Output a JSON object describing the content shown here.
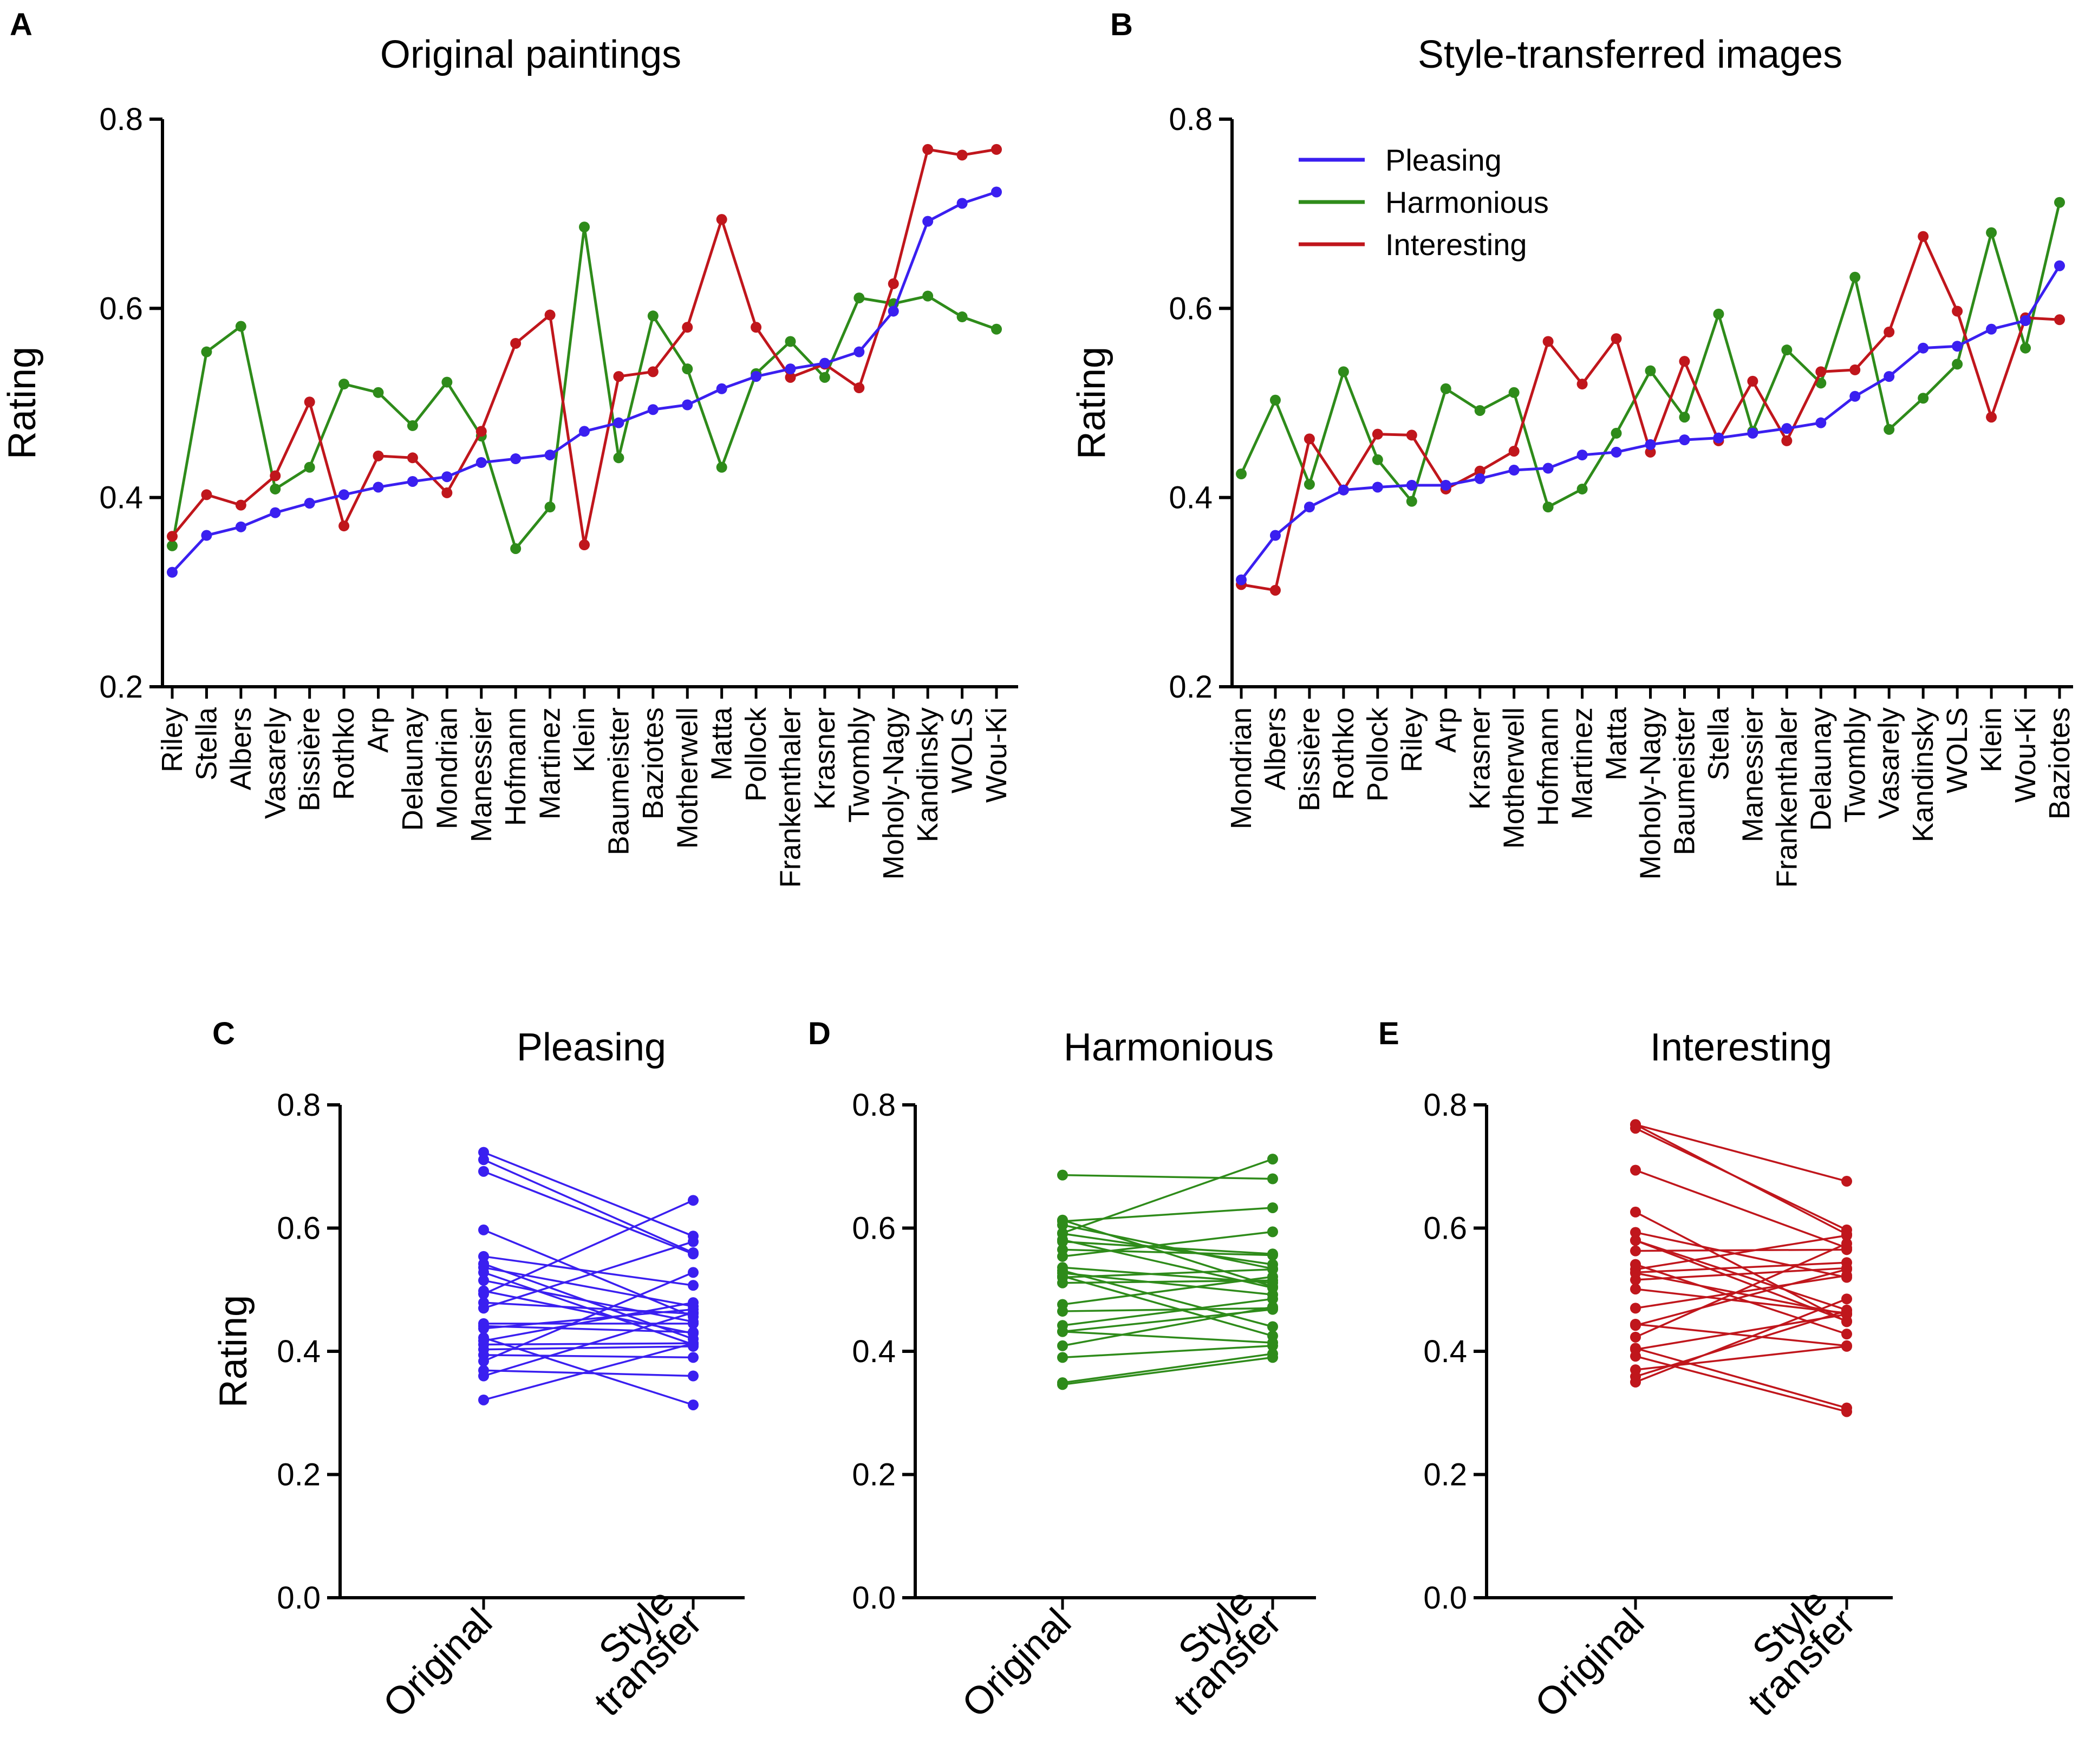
{
  "colors": {
    "pleasing": "#3a1ff0",
    "harmonious": "#2e8b1a",
    "interesting": "#c0161c",
    "axis": "#000000"
  },
  "chart_data": [
    {
      "panel": "A",
      "type": "line",
      "title": "Original paintings",
      "ylabel": "Rating",
      "ylim": [
        0.2,
        0.8
      ],
      "yticks": [
        "0.2",
        "0.4",
        "0.6",
        "0.8"
      ],
      "categories": [
        "Riley",
        "Stella",
        "Albers",
        "Vasarely",
        "Bissière",
        "Rothko",
        "Arp",
        "Delaunay",
        "Mondrian",
        "Manessier",
        "Hofmann",
        "Martinez",
        "Klein",
        "Baumeister",
        "Baziotes",
        "Motherwell",
        "Matta",
        "Pollock",
        "Frankenthaler",
        "Krasner",
        "Twombly",
        "Moholy-Nagy",
        "Kandinsky",
        "WOLS",
        "Wou-Ki"
      ],
      "series": [
        {
          "name": "Pleasing",
          "key": "pleasing",
          "values": [
            0.321,
            0.36,
            0.369,
            0.384,
            0.394,
            0.403,
            0.411,
            0.417,
            0.422,
            0.437,
            0.441,
            0.445,
            0.47,
            0.479,
            0.493,
            0.498,
            0.515,
            0.528,
            0.536,
            0.542,
            0.554,
            0.597,
            0.692,
            0.711,
            0.723
          ]
        },
        {
          "name": "Harmonious",
          "key": "harmonious",
          "values": [
            0.349,
            0.554,
            0.581,
            0.409,
            0.432,
            0.52,
            0.511,
            0.476,
            0.522,
            0.465,
            0.346,
            0.39,
            0.686,
            0.442,
            0.592,
            0.536,
            0.432,
            0.531,
            0.565,
            0.527,
            0.611,
            0.605,
            0.613,
            0.591,
            0.578
          ]
        },
        {
          "name": "Interesting",
          "key": "interesting",
          "values": [
            0.359,
            0.403,
            0.392,
            0.423,
            0.501,
            0.37,
            0.444,
            0.442,
            0.405,
            0.47,
            0.563,
            0.593,
            0.35,
            0.528,
            0.533,
            0.58,
            0.694,
            0.58,
            0.527,
            0.541,
            0.516,
            0.626,
            0.768,
            0.762,
            0.768
          ]
        }
      ]
    },
    {
      "panel": "B",
      "type": "line",
      "title": "Style-transferred images",
      "ylabel": "Rating",
      "ylim": [
        0.2,
        0.8
      ],
      "yticks": [
        "0.2",
        "0.4",
        "0.6",
        "0.8"
      ],
      "legend": {
        "placement": "top-left",
        "entries": [
          "Pleasing",
          "Harmonious",
          "Interesting"
        ]
      },
      "categories": [
        "Mondrian",
        "Albers",
        "Bissière",
        "Rothko",
        "Pollock",
        "Riley",
        "Arp",
        "Krasner",
        "Motherwell",
        "Hofmann",
        "Martinez",
        "Matta",
        "Moholy-Nagy",
        "Baumeister",
        "Stella",
        "Manessier",
        "Frankenthaler",
        "Delaunay",
        "Twombly",
        "Vasarely",
        "Kandinsky",
        "WOLS",
        "Klein",
        "Wou-Ki",
        "Baziotes"
      ],
      "series": [
        {
          "name": "Pleasing",
          "key": "pleasing",
          "values": [
            0.313,
            0.36,
            0.39,
            0.408,
            0.411,
            0.413,
            0.413,
            0.42,
            0.429,
            0.431,
            0.445,
            0.448,
            0.456,
            0.461,
            0.463,
            0.468,
            0.473,
            0.479,
            0.507,
            0.528,
            0.558,
            0.56,
            0.578,
            0.587,
            0.645
          ]
        },
        {
          "name": "Harmonious",
          "key": "harmonious",
          "values": [
            0.425,
            0.503,
            0.414,
            0.533,
            0.44,
            0.396,
            0.515,
            0.492,
            0.511,
            0.39,
            0.409,
            0.468,
            0.534,
            0.485,
            0.594,
            0.47,
            0.556,
            0.521,
            0.633,
            0.472,
            0.505,
            0.541,
            0.68,
            0.558,
            0.712
          ]
        },
        {
          "name": "Interesting",
          "key": "interesting",
          "values": [
            0.308,
            0.302,
            0.462,
            0.408,
            0.467,
            0.466,
            0.409,
            0.428,
            0.449,
            0.565,
            0.52,
            0.568,
            0.448,
            0.544,
            0.46,
            0.523,
            0.46,
            0.533,
            0.535,
            0.575,
            0.676,
            0.597,
            0.485,
            0.59,
            0.588
          ]
        }
      ]
    },
    {
      "panel": "C",
      "type": "line",
      "title": "Pleasing",
      "ylabel": "Rating",
      "series_key": "pleasing",
      "ylim": [
        0.0,
        0.8
      ],
      "yticks": [
        "0.0",
        "0.2",
        "0.4",
        "0.6",
        "0.8"
      ],
      "categories": [
        "Original",
        "Style|transfer"
      ],
      "pairing": "paired lines link each painting's original rating to its style-transfer rating"
    },
    {
      "panel": "D",
      "type": "line",
      "title": "Harmonious",
      "ylabel": "",
      "series_key": "harmonious",
      "ylim": [
        0.0,
        0.8
      ],
      "yticks": [
        "0.0",
        "0.2",
        "0.4",
        "0.6",
        "0.8"
      ],
      "categories": [
        "Original",
        "Style|transfer"
      ]
    },
    {
      "panel": "E",
      "type": "line",
      "title": "Interesting",
      "ylabel": "",
      "series_key": "interesting",
      "ylim": [
        0.0,
        0.8
      ],
      "yticks": [
        "0.0",
        "0.2",
        "0.4",
        "0.6",
        "0.8"
      ],
      "categories": [
        "Original",
        "Style|transfer"
      ]
    }
  ]
}
